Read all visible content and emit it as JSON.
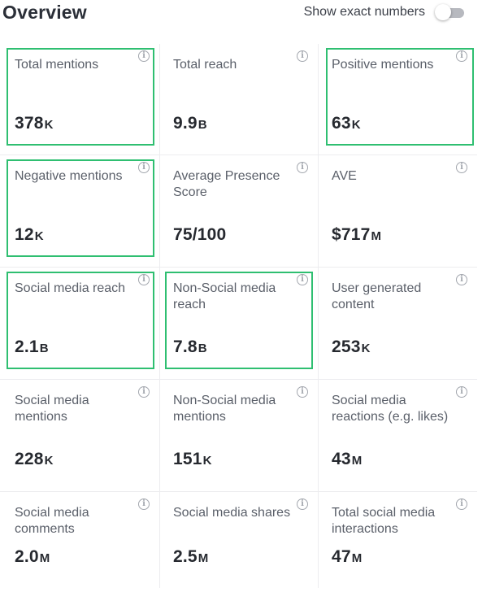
{
  "header": {
    "title": "Overview",
    "toggle_label": "Show exact numbers",
    "toggle_on": false
  },
  "colors": {
    "highlight": "#2fbf71",
    "title": "#2b2f38",
    "label": "#5a5f69",
    "value": "#26292f"
  },
  "metrics": [
    {
      "label": "Total mentions",
      "value": "378",
      "suffix": "K",
      "highlighted": true
    },
    {
      "label": "Total reach",
      "value": "9.9",
      "suffix": "B",
      "highlighted": false
    },
    {
      "label": "Positive mentions",
      "value": "63",
      "suffix": "K",
      "highlighted": true
    },
    {
      "label": "Negative mentions",
      "value": "12",
      "suffix": "K",
      "highlighted": true
    },
    {
      "label": "Average Presence Score",
      "value": "75/100",
      "suffix": "",
      "highlighted": false
    },
    {
      "label": "AVE",
      "value": "$717",
      "suffix": "M",
      "highlighted": false
    },
    {
      "label": "Social media reach",
      "value": "2.1",
      "suffix": "B",
      "highlighted": true
    },
    {
      "label": "Non-Social media reach",
      "value": "7.8",
      "suffix": "B",
      "highlighted": true
    },
    {
      "label": "User generated content",
      "value": "253",
      "suffix": "K",
      "highlighted": false
    },
    {
      "label": "Social media mentions",
      "value": "228",
      "suffix": "K",
      "highlighted": false
    },
    {
      "label": "Non-Social media mentions",
      "value": "151",
      "suffix": "K",
      "highlighted": false
    },
    {
      "label": "Social media reactions (e.g. likes)",
      "value": "43",
      "suffix": "M",
      "highlighted": false
    },
    {
      "label": "Social media comments",
      "value": "2.0",
      "suffix": "M",
      "highlighted": false
    },
    {
      "label": "Social media shares",
      "value": "2.5",
      "suffix": "M",
      "highlighted": false
    },
    {
      "label": "Total social media interactions",
      "value": "47",
      "suffix": "M",
      "highlighted": false
    }
  ]
}
